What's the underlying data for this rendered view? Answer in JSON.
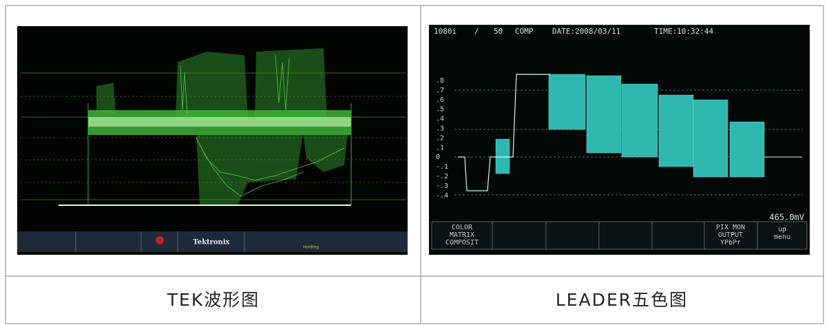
{
  "tek": {
    "caption": "TEK波形图",
    "screen": {
      "brand": "Tektronix",
      "status": "Holding"
    }
  },
  "leader": {
    "caption": "LEADER五色图",
    "header": {
      "format": "1080i",
      "separator": "/",
      "rate": "50",
      "mode": "COMP",
      "date": "DATE:2008/03/11",
      "time": "TIME:10:32:44"
    },
    "scale": [
      ".8",
      ".7",
      ".6",
      ".5",
      ".4",
      ".3",
      ".2",
      ".1",
      "0",
      "-.1",
      "-.2",
      "-.3",
      "-.4"
    ],
    "amplitude": "465.0mV",
    "menu": [
      [
        "COLOR",
        "MATRIX",
        "COMPOSIT"
      ],
      [
        "PIX MON",
        "OUTPUT",
        "YPbPr"
      ],
      [
        "up",
        "menu"
      ]
    ]
  }
}
